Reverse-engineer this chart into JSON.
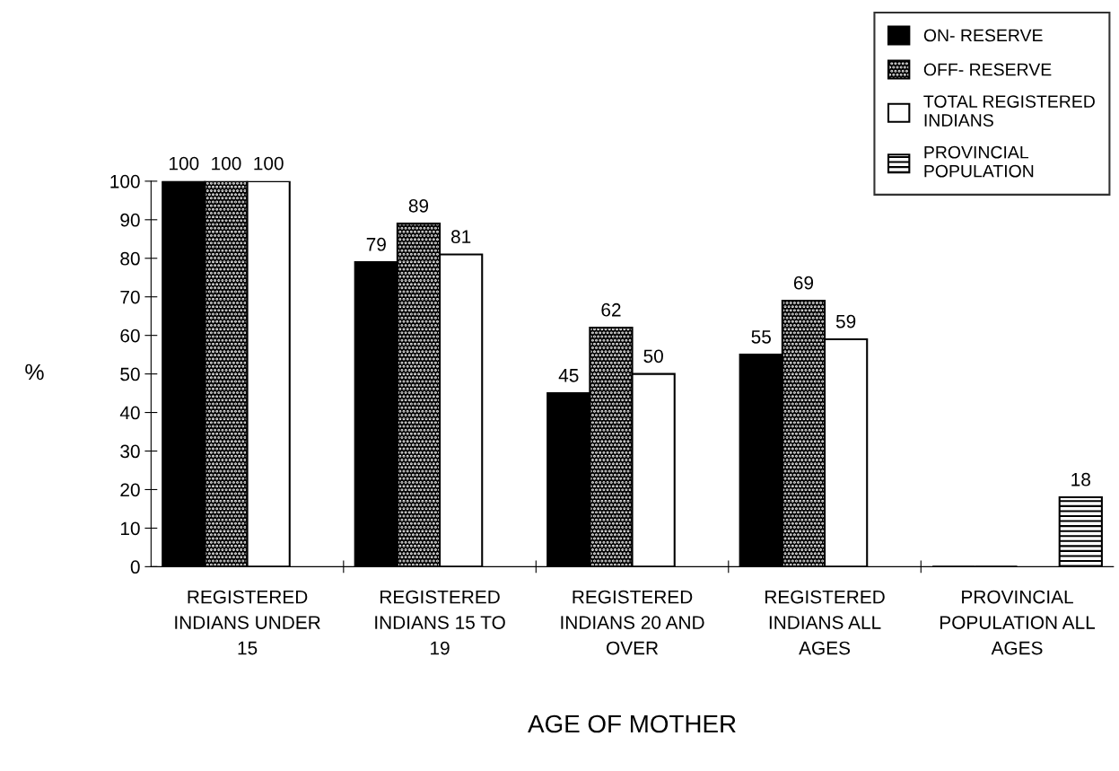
{
  "chart_data": {
    "type": "bar",
    "xlabel": "AGE OF MOTHER",
    "ylabel": "%",
    "categories": [
      "REGISTERED\nINDIANS UNDER\n15",
      "REGISTERED\nINDIANS 15 TO\n19",
      "REGISTERED\nINDIANS 20 AND\nOVER",
      "REGISTERED\nINDIANS ALL\nAGES",
      "PROVINCIAL\nPOPULATION ALL\nAGES"
    ],
    "series": [
      {
        "name": "ON- RESERVE",
        "color": "#000000",
        "values": [
          100,
          79,
          45,
          55,
          0
        ],
        "value_labels": [
          "100",
          "79",
          "45",
          "55",
          null
        ]
      },
      {
        "name": "OFF- RESERVE",
        "color": "#000000",
        "values": [
          100,
          89,
          62,
          69,
          0
        ],
        "value_labels": [
          "100",
          "89",
          "62",
          "69",
          null
        ]
      },
      {
        "name": "TOTAL REGISTERED\nINDIANS",
        "color": "#ffffff",
        "values": [
          100,
          81,
          50,
          59,
          null
        ],
        "value_labels": [
          "100",
          "81",
          "50",
          "59",
          null
        ]
      },
      {
        "name": "PROVINCIAL\nPOPULATION",
        "color": "#000000",
        "values": [
          null,
          null,
          null,
          null,
          18
        ],
        "value_labels": [
          null,
          null,
          null,
          null,
          "18"
        ]
      }
    ],
    "ylim": [
      0,
      100
    ],
    "yticks": [
      0,
      10,
      20,
      30,
      40,
      50,
      60,
      70,
      80,
      90,
      100
    ],
    "grid": false,
    "legend": "top right"
  }
}
